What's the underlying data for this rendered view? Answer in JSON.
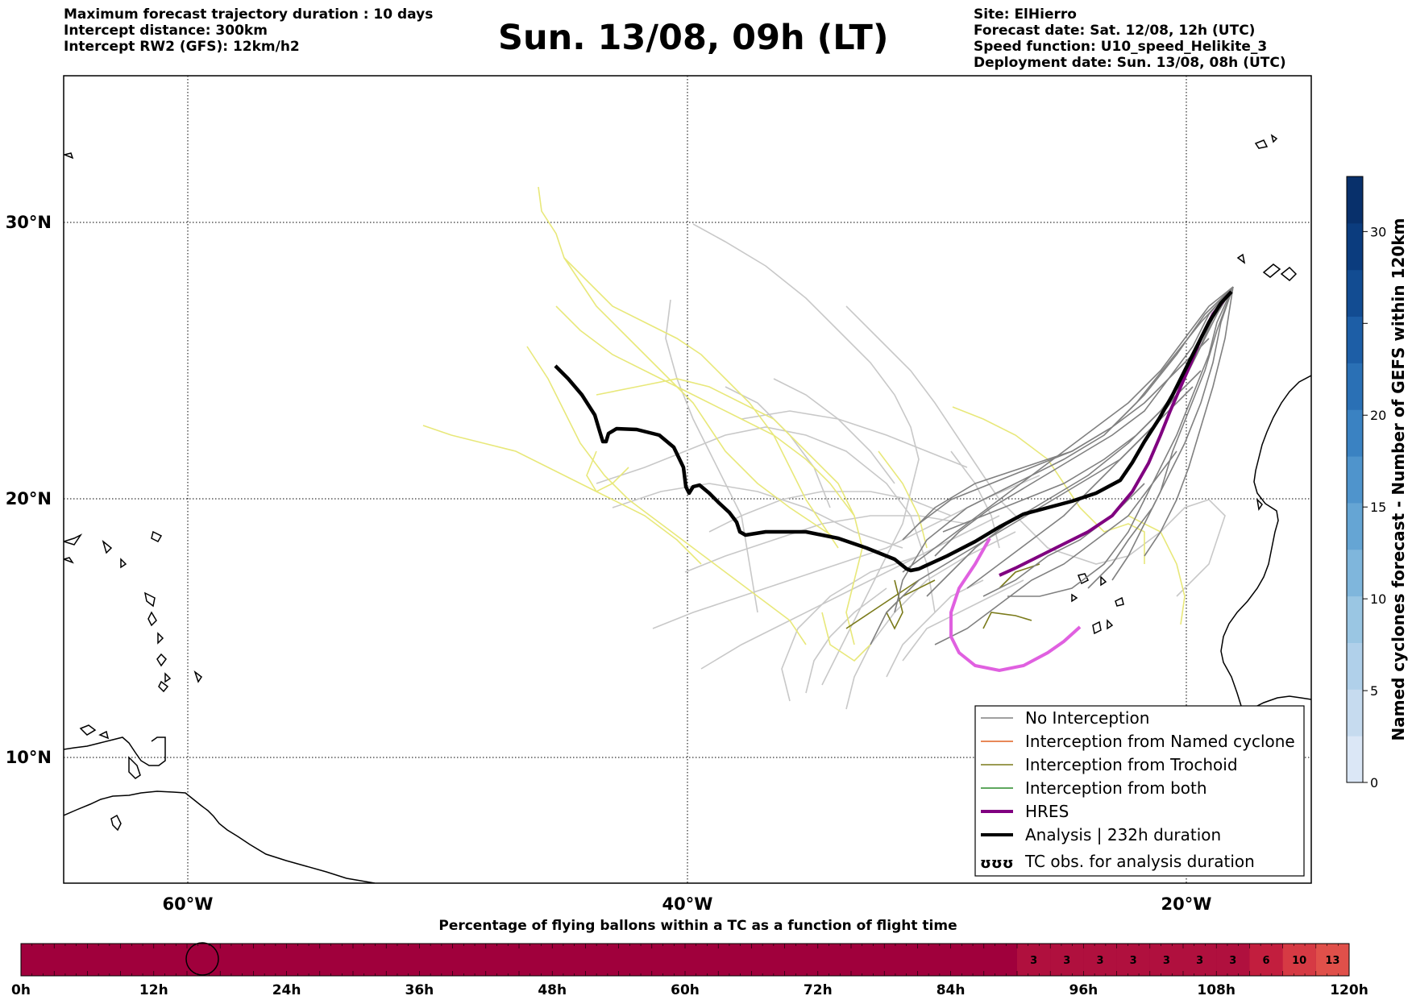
{
  "header": {
    "left_lines": [
      "Maximum forecast trajectory duration : 10 days",
      "Intercept distance: 300km",
      "Intercept RW2 (GFS):  12km/h2"
    ],
    "title": "Sun. 13/08, 09h (LT)",
    "right_lines": [
      "Site: ElHierro",
      "Forecast date: Sat. 12/08, 12h (UTC)",
      "Speed function: U10_speed_Helikite_3",
      "Deployment date: Sun. 13/08, 08h (UTC)"
    ]
  },
  "map": {
    "lon_labels": [
      "60°W",
      "40°W",
      "20°W"
    ],
    "lat_labels": [
      "30°N",
      "20°N",
      "10°N"
    ],
    "colors": {
      "no_interception": "#808080",
      "ensemble_light": "#c8c8c8",
      "yellow": "#e8e87a",
      "trochoid": "#7a7a1a",
      "named_cyclone": "#e06020",
      "both": "#2a8a2a",
      "hres": "#800080",
      "analysis": "#000000",
      "magenta": "#e060e0"
    }
  },
  "legend": {
    "items": [
      {
        "label": "No Interception",
        "color": "#808080",
        "width": 1.5
      },
      {
        "label": "Interception from Named cyclone",
        "color": "#e06020",
        "width": 1.5
      },
      {
        "label": "Interception from Trochoid",
        "color": "#7a7a1a",
        "width": 1.5
      },
      {
        "label": "Interception from both",
        "color": "#2a8a2a",
        "width": 1.5
      },
      {
        "label": "HRES",
        "color": "#800080",
        "width": 4
      },
      {
        "label": "Analysis | 232h duration",
        "color": "#000000",
        "width": 4
      }
    ],
    "tc_obs_symbol": "ʊʊʊ",
    "tc_obs_label": "TC obs. for analysis duration"
  },
  "colorbar": {
    "title": "Named cyclones forecast - Number of GEFS within 120km",
    "ticks": [
      "0",
      "5",
      "10",
      "15",
      "20",
      "30"
    ],
    "ticks_extra": "25",
    "colors_bottom_to_top": [
      "#dbe7f6",
      "#c6dbef",
      "#b0d0ea",
      "#9ac6e3",
      "#7fb6dc",
      "#65a5d4",
      "#4f94cc",
      "#3a82c2",
      "#2a70b5",
      "#1d5ea6",
      "#124c92",
      "#0b3c7e",
      "#08306b"
    ]
  },
  "progress_bar": {
    "title": "Percentage of flying ballons within a TC as a function of flight time",
    "tick_labels": [
      "0h",
      "12h",
      "24h",
      "36h",
      "48h",
      "60h",
      "72h",
      "84h",
      "96h",
      "108h",
      "120h"
    ],
    "cell_values": [
      "3",
      "3",
      "3",
      "3",
      "3",
      "3",
      "3",
      "6",
      "10",
      "13"
    ],
    "base_color": "#a0003c"
  }
}
